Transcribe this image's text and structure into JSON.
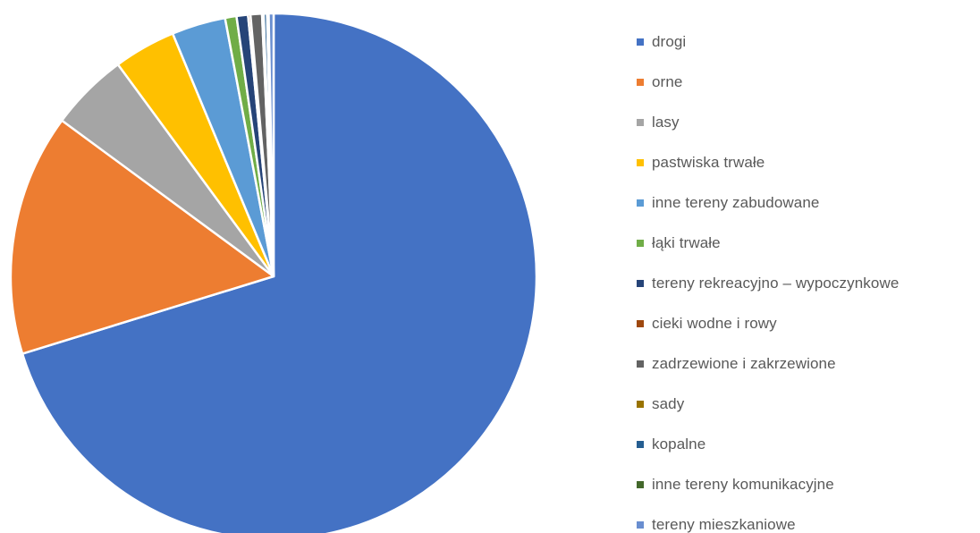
{
  "chart_data": {
    "type": "pie",
    "title": "",
    "start_angle_deg": 0,
    "direction": "clockwise",
    "slices": [
      {
        "label": " drogi",
        "value": 70.0,
        "color": "#4472C4"
      },
      {
        "label": "orne",
        "value": 14.8,
        "color": "#ED7D31"
      },
      {
        "label": " lasy",
        "value": 4.8,
        "color": "#A5A5A5"
      },
      {
        "label": "pastwiska trwałe",
        "value": 3.8,
        "color": "#FFC000"
      },
      {
        "label": "inne tereny zabudowane",
        "value": 3.3,
        "color": "#5B9BD5"
      },
      {
        "label": "łąki trwałe",
        "value": 0.7,
        "color": "#70AD47"
      },
      {
        "label": "tereny rekreacyjno – wypoczynkowe",
        "value": 0.7,
        "color": "#264478"
      },
      {
        "label": "cieki wodne i rowy",
        "value": 0.15,
        "color": "#9E480E"
      },
      {
        "label": "zadrzewione i zakrzewione",
        "value": 0.7,
        "color": "#636363"
      },
      {
        "label": "sady",
        "value": 0.1,
        "color": "#997300"
      },
      {
        "label": "kopalne",
        "value": 0.2,
        "color": "#255E91"
      },
      {
        "label": "inne tereny komunikacyjne",
        "value": 0.1,
        "color": "#43682B"
      },
      {
        "label": "tereny mieszkaniowe",
        "value": 0.3,
        "color": "#698ED0"
      }
    ],
    "legend_position": "right"
  }
}
